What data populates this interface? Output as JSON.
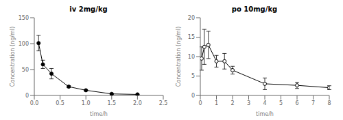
{
  "chart_data": [
    {
      "type": "line",
      "title": "iv 2mg/kg",
      "xlabel": "time/h",
      "ylabel": "Concentration (ng/ml)",
      "x": [
        0.083,
        0.167,
        0.333,
        0.667,
        1.0,
        1.5,
        2.0
      ],
      "values": [
        101,
        60,
        42,
        17,
        10,
        3,
        2
      ],
      "yerr_lower": [
        15,
        8,
        10,
        2,
        1,
        1,
        0.5
      ],
      "yerr_upper": [
        15,
        8,
        10,
        2,
        1,
        1,
        0.5
      ],
      "xlim": [
        0.0,
        2.5
      ],
      "ylim": [
        0,
        150
      ],
      "xticks": [
        {
          "value": 0.0,
          "label": "0.0"
        },
        {
          "value": 0.5,
          "label": "0.5"
        },
        {
          "value": 1.0,
          "label": "1.0"
        },
        {
          "value": 1.5,
          "label": "1.5"
        },
        {
          "value": 2.0,
          "label": "2.0"
        },
        {
          "value": 2.5,
          "label": "2.5"
        }
      ],
      "yticks": [
        0,
        50,
        100,
        150
      ],
      "color": "#000000",
      "marker": "circle"
    },
    {
      "type": "line",
      "title": "po 10mg/kg",
      "xlabel": "time/h",
      "ylabel": "Concentration (ng/ml)",
      "x": [
        0.083,
        0.25,
        0.5,
        1.0,
        1.5,
        2.0,
        4.0,
        6.0,
        8.0
      ],
      "values": [
        9.5,
        12.5,
        13.0,
        8.8,
        8.8,
        6.5,
        3.0,
        2.6,
        2.0
      ],
      "yerr_lower": [
        3.0,
        4.5,
        3.5,
        1.5,
        2.0,
        1.0,
        1.5,
        0.8,
        0.5
      ],
      "yerr_upper": [
        3.0,
        4.5,
        3.5,
        1.5,
        2.0,
        1.0,
        1.5,
        0.8,
        0.5
      ],
      "xlim": [
        0,
        8
      ],
      "ylim": [
        0,
        20
      ],
      "xticks": [
        0,
        1,
        2,
        3,
        4,
        5,
        6,
        7,
        8
      ],
      "yticks": [
        0,
        5,
        10,
        15,
        20
      ],
      "color": "#000000",
      "marker": "ring"
    }
  ]
}
